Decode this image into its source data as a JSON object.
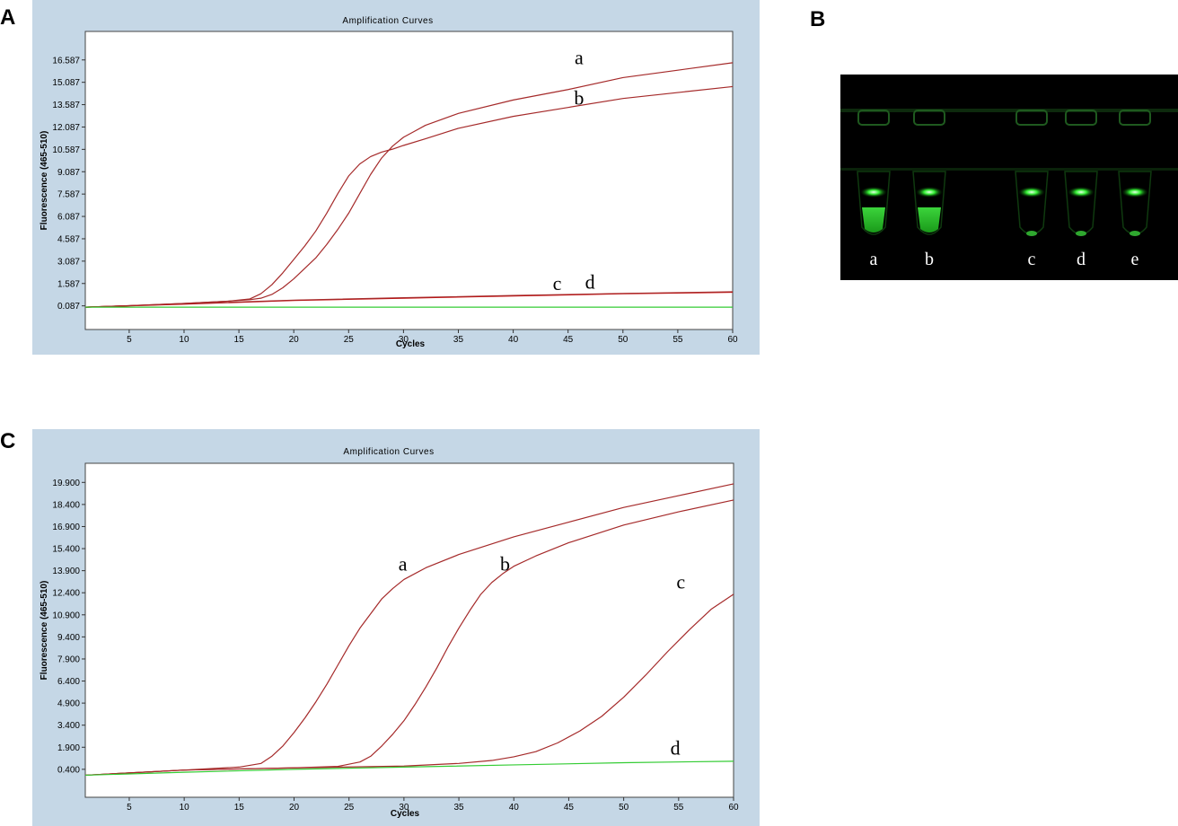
{
  "panel_letters": {
    "a": "A",
    "b": "B",
    "c": "C"
  },
  "colors": {
    "frame_bg": "#c5d7e6",
    "plot_bg": "#ffffff",
    "sample_curve": "#a52a2a",
    "negative_curve": "#33cc33",
    "gel_bg": "#000000",
    "gel_glow": "#22dd22"
  },
  "chart_data": [
    {
      "type": "line",
      "panel": "A",
      "title": "Amplification Curves",
      "xlabel": "Cycles",
      "ylabel": "Fluorescence (465-510)",
      "xlim": [
        1,
        60
      ],
      "ylim": [
        -1.5,
        18.5
      ],
      "x_ticks": [
        5,
        10,
        15,
        20,
        25,
        30,
        35,
        40,
        45,
        50,
        55,
        60
      ],
      "x_tick_labels": [
        "5",
        "10",
        "15",
        "20",
        "25",
        "30",
        "35",
        "40",
        "45",
        "50",
        "55",
        "60"
      ],
      "y_ticks": [
        0.087,
        1.587,
        3.087,
        4.587,
        6.087,
        7.587,
        9.087,
        10.587,
        12.087,
        13.587,
        15.087,
        16.587
      ],
      "y_tick_labels": [
        "0.087",
        "1.587",
        "3.087",
        "4.587",
        "6.087",
        "7.587",
        "9.087",
        "10.587",
        "12.087",
        "13.587",
        "15.087",
        "16.587"
      ],
      "grid": false,
      "series": [
        {
          "name": "a",
          "color": "#a52a2a",
          "x": [
            1,
            5,
            10,
            14,
            16,
            17,
            18,
            19,
            20,
            21,
            22,
            23,
            24,
            25,
            26,
            27,
            28,
            29,
            30,
            32,
            35,
            40,
            45,
            50,
            55,
            60
          ],
          "y": [
            0.0,
            0.1,
            0.25,
            0.4,
            0.55,
            0.9,
            1.5,
            2.3,
            3.2,
            4.1,
            5.1,
            6.3,
            7.6,
            8.8,
            9.6,
            10.1,
            10.4,
            10.6,
            10.85,
            11.3,
            12.0,
            12.8,
            13.4,
            14.0,
            14.4,
            14.8
          ]
        },
        {
          "name": "b",
          "color": "#a52a2a",
          "x": [
            1,
            5,
            10,
            14,
            16,
            17,
            18,
            19,
            20,
            21,
            22,
            23,
            24,
            25,
            26,
            27,
            28,
            29,
            30,
            31,
            32,
            35,
            40,
            45,
            50,
            55,
            60
          ],
          "y": [
            0.0,
            0.1,
            0.25,
            0.4,
            0.5,
            0.6,
            0.85,
            1.3,
            1.9,
            2.6,
            3.3,
            4.2,
            5.2,
            6.3,
            7.6,
            8.9,
            10.0,
            10.8,
            11.4,
            11.8,
            12.2,
            13.0,
            13.9,
            14.6,
            15.4,
            15.9,
            16.4
          ]
        },
        {
          "name": "c",
          "color": "#cc0000",
          "x": [
            1,
            10,
            20,
            30,
            40,
            50,
            60
          ],
          "y": [
            0.0,
            0.2,
            0.45,
            0.6,
            0.75,
            0.9,
            1.0
          ]
        },
        {
          "name": "d",
          "color": "#a52a2a",
          "x": [
            1,
            10,
            20,
            30,
            40,
            50,
            60
          ],
          "y": [
            0.0,
            0.22,
            0.47,
            0.63,
            0.78,
            0.92,
            1.03
          ]
        },
        {
          "name": "",
          "color": "#33cc33",
          "x": [
            1,
            60
          ],
          "y": [
            0.0,
            0.0
          ]
        }
      ],
      "annotations": [
        {
          "text": "a",
          "x": 46,
          "y": 16.3
        },
        {
          "text": "b",
          "x": 46,
          "y": 13.6
        },
        {
          "text": "c",
          "x": 44,
          "y": 1.15
        },
        {
          "text": "d",
          "x": 47,
          "y": 1.25
        }
      ]
    },
    {
      "type": "line",
      "panel": "C",
      "title": "Amplification Curves",
      "xlabel": "Cycles",
      "ylabel": "Fluorescence (465-510)",
      "xlim": [
        1,
        60
      ],
      "ylim": [
        -1.5,
        21.2
      ],
      "x_ticks": [
        5,
        10,
        15,
        20,
        25,
        30,
        35,
        40,
        45,
        50,
        55,
        60
      ],
      "x_tick_labels": [
        "5",
        "10",
        "15",
        "20",
        "25",
        "30",
        "35",
        "40",
        "45",
        "50",
        "55",
        "60"
      ],
      "y_ticks": [
        0.4,
        1.9,
        3.4,
        4.9,
        6.4,
        7.9,
        9.4,
        10.9,
        12.4,
        13.9,
        15.4,
        16.9,
        18.4,
        19.9
      ],
      "y_tick_labels": [
        "0.400",
        "1.900",
        "3.400",
        "4.900",
        "6.400",
        "7.900",
        "9.400",
        "10.900",
        "12.400",
        "13.900",
        "15.400",
        "16.900",
        "18.400",
        "19.900"
      ],
      "grid": false,
      "series": [
        {
          "name": "a",
          "color": "#a52a2a",
          "x": [
            1,
            10,
            15,
            17,
            18,
            19,
            20,
            21,
            22,
            23,
            24,
            25,
            26,
            27,
            28,
            29,
            30,
            32,
            35,
            40,
            45,
            50,
            55,
            60
          ],
          "y": [
            0.0,
            0.35,
            0.55,
            0.8,
            1.3,
            2.0,
            2.9,
            3.9,
            5.0,
            6.2,
            7.5,
            8.8,
            10.0,
            11.0,
            12.0,
            12.7,
            13.3,
            14.1,
            15.0,
            16.2,
            17.2,
            18.2,
            19.0,
            19.8
          ]
        },
        {
          "name": "b",
          "color": "#a52a2a",
          "x": [
            1,
            10,
            20,
            24,
            26,
            27,
            28,
            29,
            30,
            31,
            32,
            33,
            34,
            35,
            36,
            37,
            38,
            39,
            40,
            42,
            45,
            50,
            55,
            60
          ],
          "y": [
            0.0,
            0.35,
            0.5,
            0.6,
            0.9,
            1.3,
            2.0,
            2.8,
            3.7,
            4.8,
            6.0,
            7.3,
            8.7,
            10.0,
            11.2,
            12.3,
            13.1,
            13.7,
            14.2,
            14.9,
            15.8,
            17.0,
            17.9,
            18.7
          ]
        },
        {
          "name": "c",
          "color": "#a52a2a",
          "x": [
            1,
            10,
            20,
            30,
            35,
            38,
            40,
            42,
            44,
            46,
            48,
            50,
            52,
            54,
            56,
            58,
            60
          ],
          "y": [
            0.0,
            0.35,
            0.5,
            0.62,
            0.8,
            1.0,
            1.25,
            1.6,
            2.2,
            3.0,
            4.0,
            5.3,
            6.8,
            8.4,
            9.9,
            11.3,
            12.3
          ]
        },
        {
          "name": "d",
          "color": "#33cc33",
          "x": [
            1,
            10,
            20,
            30,
            40,
            50,
            60
          ],
          "y": [
            0.0,
            0.2,
            0.4,
            0.55,
            0.7,
            0.85,
            0.95
          ]
        }
      ],
      "annotations": [
        {
          "text": "a",
          "x": 29.9,
          "y": 13.9
        },
        {
          "text": "b",
          "x": 39.2,
          "y": 13.9
        },
        {
          "text": "c",
          "x": 55.2,
          "y": 12.7
        },
        {
          "text": "d",
          "x": 54.7,
          "y": 1.4
        }
      ]
    }
  ],
  "gel_image": {
    "panel": "B",
    "lane_labels": [
      "a",
      "b",
      "c",
      "d",
      "e"
    ],
    "bright_lanes": [
      "a",
      "b"
    ]
  }
}
